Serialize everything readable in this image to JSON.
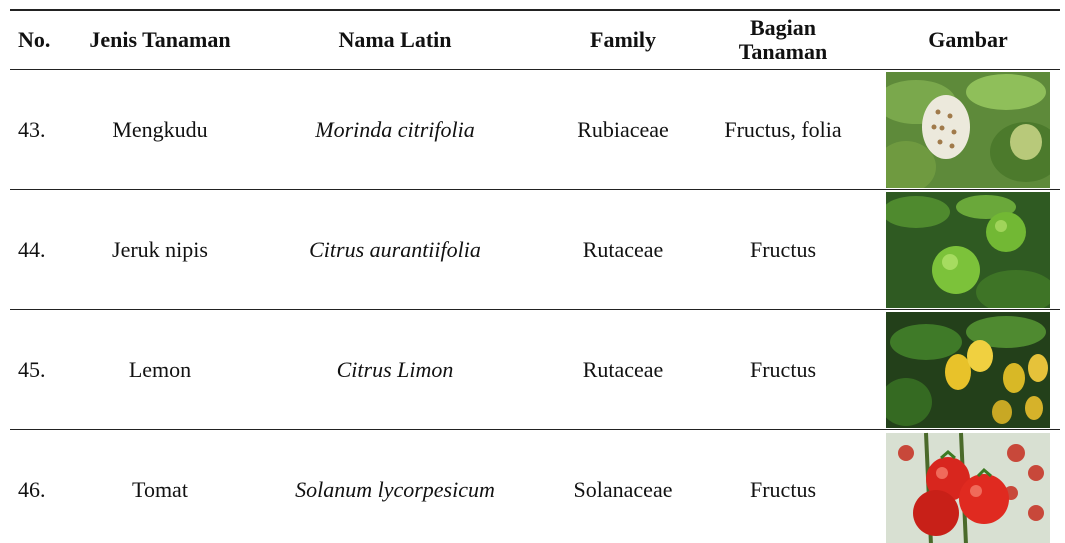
{
  "table": {
    "headers": [
      "No.",
      "Jenis Tanaman",
      "Nama Latin",
      "Family",
      "Bagian Tanaman",
      "Gambar"
    ],
    "rows": [
      [
        "43.",
        "Mengkudu",
        "Morinda citrifolia",
        "Rubiaceae",
        "Fructus, folia"
      ],
      [
        "44.",
        "Jeruk nipis",
        "Citrus aurantiifolia",
        "Rutaceae",
        "Fructus"
      ],
      [
        "45.",
        "Lemon",
        "Citrus Limon",
        "Rutaceae",
        "Fructus"
      ],
      [
        "46.",
        "Tomat",
        "Solanum lycorpesicum",
        "Solanaceae",
        "Fructus"
      ]
    ]
  }
}
